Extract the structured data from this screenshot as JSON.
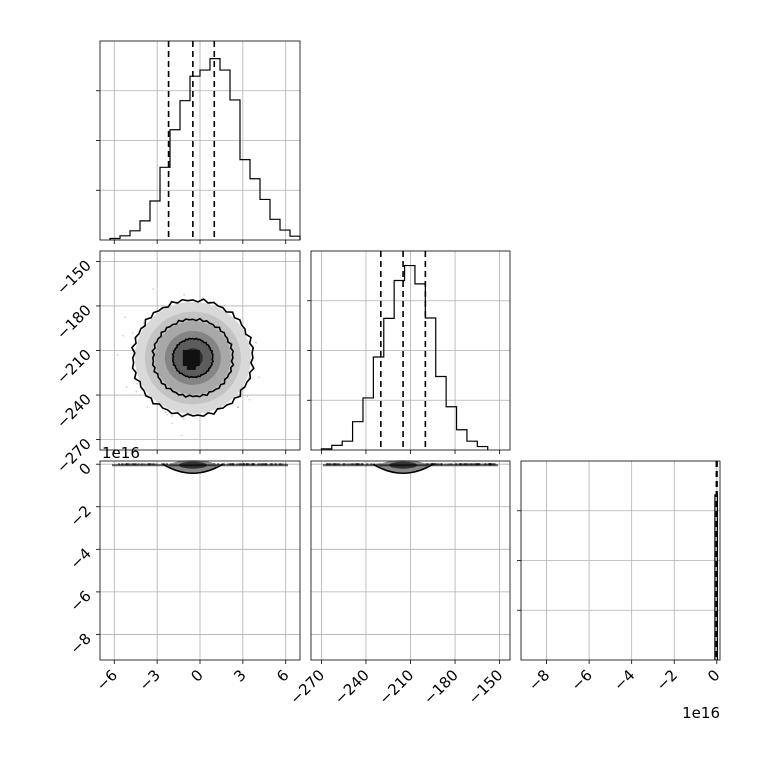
{
  "chart_data": {
    "type": "corner",
    "grid": true,
    "params": [
      {
        "range": [
          -7,
          7
        ],
        "ticks": [
          -6,
          -3,
          0,
          3,
          6
        ],
        "tick_labels": [
          "−6",
          "−3",
          "0",
          "3",
          "6"
        ],
        "quantiles": [
          -2.2,
          -0.5,
          1.0
        ],
        "hist_bins_start": -6.3,
        "hist_bin_width": 0.7,
        "hist_counts": [
          0.4,
          1.1,
          2.4,
          5.0,
          10.2,
          19.0,
          28.8,
          36.4,
          42.8,
          44.4,
          47.4,
          44.4,
          36.6,
          21.0,
          16.0,
          10.6,
          5.4,
          2.6,
          1.0
        ],
        "hist_ylim": [
          0,
          52
        ]
      },
      {
        "range": [
          -277,
          -143
        ],
        "ticks": [
          -270,
          -240,
          -210,
          -180,
          -150
        ],
        "tick_labels": [
          "−270",
          "−240",
          "−210",
          "−180",
          "−150"
        ],
        "quantiles": [
          -230,
          -215,
          -200
        ],
        "hist_bins_start": -270,
        "hist_bin_width": 7,
        "hist_counts": [
          0.3,
          1.2,
          2.3,
          7.4,
          13.6,
          24.3,
          34.4,
          44.3,
          48.2,
          43.4,
          34.5,
          19.2,
          11.3,
          5.3,
          2.3,
          0.9
        ],
        "hist_ylim": [
          0,
          52
        ]
      },
      {
        "range": [
          -9.2,
          0.15
        ],
        "ticks": [
          -8,
          -6,
          -4,
          -2,
          0
        ],
        "tick_labels": [
          "−8",
          "−6",
          "−4",
          "−2",
          "0"
        ],
        "offset_label": "1e16",
        "quantiles": [
          -0.02,
          0.0,
          0.01
        ],
        "hist_ylim": [
          0,
          10
        ]
      }
    ],
    "panel_2d": [
      {
        "x_param": 0,
        "y_param": 1,
        "center": [
          -0.5,
          -215
        ],
        "sigma": [
          1.4,
          13
        ],
        "contour_levels": [
          0.393,
          0.865,
          0.989
        ]
      }
    ],
    "row3_y_ticks": [
      "0",
      "−2",
      "−4",
      "−6",
      "−8"
    ],
    "row3_offset_label": "1e16",
    "bottom_right_offset_label": "1e16"
  }
}
